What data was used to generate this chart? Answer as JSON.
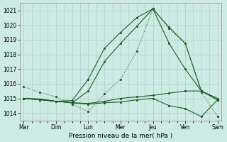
{
  "xlabel": "Pression niveau de la mer( hPa )",
  "background_color": "#ceeae4",
  "grid_color": "#aacfc8",
  "line_color": "#1a6020",
  "x_labels": [
    "Mar",
    "Dim",
    "Lun",
    "Mer",
    "Jeu",
    "Ven",
    "Sam"
  ],
  "x_ticks": [
    0,
    4,
    8,
    12,
    16,
    20,
    24
  ],
  "ylim": [
    1013.5,
    1021.5
  ],
  "yticks": [
    1014,
    1015,
    1016,
    1017,
    1018,
    1019,
    1020,
    1021
  ],
  "minor_xticks": [
    0,
    1,
    2,
    3,
    4,
    5,
    6,
    7,
    8,
    9,
    10,
    11,
    12,
    13,
    14,
    15,
    16,
    17,
    18,
    19,
    20,
    21,
    22,
    23,
    24
  ],
  "line_dotted": {
    "x": [
      0,
      2,
      4,
      6,
      8,
      10,
      12,
      14,
      16,
      18,
      20,
      22,
      24
    ],
    "y": [
      1015.8,
      1015.4,
      1015.1,
      1014.6,
      1014.1,
      1015.3,
      1016.3,
      1018.2,
      1021.1,
      1019.75,
      1018.75,
      1015.4,
      1013.75
    ]
  },
  "line_main1": {
    "x": [
      0,
      2,
      4,
      6,
      8,
      10,
      12,
      14,
      16,
      18,
      20,
      22,
      24
    ],
    "y": [
      1015.0,
      1014.9,
      1014.8,
      1014.85,
      1016.3,
      1018.4,
      1019.5,
      1020.5,
      1021.1,
      1019.85,
      1018.75,
      1015.5,
      1014.9
    ]
  },
  "line_main2": {
    "x": [
      0,
      2,
      4,
      6,
      8,
      10,
      12,
      14,
      16,
      18,
      20,
      22,
      24
    ],
    "y": [
      1015.0,
      1014.9,
      1014.8,
      1014.7,
      1015.5,
      1017.5,
      1018.75,
      1019.9,
      1021.1,
      1018.75,
      1017.0,
      1015.5,
      1014.9
    ]
  },
  "line_flat1": {
    "x": [
      0,
      2,
      4,
      6,
      8,
      10,
      12,
      14,
      16,
      18,
      20,
      22,
      24
    ],
    "y": [
      1015.0,
      1014.95,
      1014.8,
      1014.7,
      1014.65,
      1014.8,
      1015.0,
      1015.1,
      1015.2,
      1015.35,
      1015.5,
      1015.5,
      1015.0
    ]
  },
  "line_flat2": {
    "x": [
      0,
      2,
      4,
      6,
      8,
      10,
      12,
      14,
      16,
      18,
      20,
      22,
      24
    ],
    "y": [
      1015.0,
      1014.95,
      1014.8,
      1014.7,
      1014.6,
      1014.7,
      1014.75,
      1014.9,
      1015.0,
      1014.5,
      1014.3,
      1013.75,
      1014.9
    ]
  }
}
